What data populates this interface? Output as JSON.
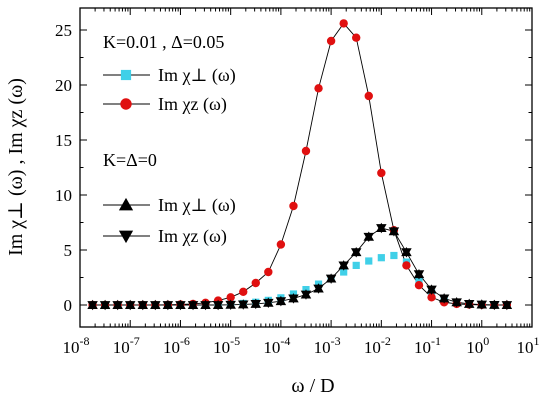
{
  "chart_data": {
    "type": "line",
    "xlabel": "ω / D",
    "ylabel": "Im χ⊥ (ω) , Im χz (ω)",
    "x_scale": "log",
    "xlim": [
      1e-08,
      10
    ],
    "ylim": [
      -2,
      27
    ],
    "x_ticks": [
      1e-08,
      1e-07,
      1e-06,
      1e-05,
      0.0001,
      0.001,
      0.01,
      0.1,
      1,
      10
    ],
    "x_tick_labels": [
      {
        "base": "10",
        "exp": "-8"
      },
      {
        "base": "10",
        "exp": "-7"
      },
      {
        "base": "10",
        "exp": "-6"
      },
      {
        "base": "10",
        "exp": "-5"
      },
      {
        "base": "10",
        "exp": "-4"
      },
      {
        "base": "10",
        "exp": "-3"
      },
      {
        "base": "10",
        "exp": "-2"
      },
      {
        "base": "10",
        "exp": "-1"
      },
      {
        "base": "10",
        "exp": "0"
      },
      {
        "base": "10",
        "exp": "1"
      }
    ],
    "y_ticks": [
      0,
      5,
      10,
      15,
      20,
      25
    ],
    "y_tick_labels": [
      "0",
      "5",
      "10",
      "15",
      "20",
      "25"
    ],
    "legend_groups": [
      {
        "title": "K=0.01 , Δ=0.05",
        "entries": [
          {
            "text": "Im χ⊥ (ω)",
            "series": 0
          },
          {
            "text": "Im χz (ω)",
            "series": 1
          }
        ]
      },
      {
        "title": "K=Δ=0",
        "entries": [
          {
            "text": "Im χ⊥ (ω)",
            "series": 2
          },
          {
            "text": "Im χz (ω)",
            "series": 3
          }
        ]
      }
    ],
    "x": [
      1.78e-08,
      3.16e-08,
      5.62e-08,
      1e-07,
      1.78e-07,
      3.16e-07,
      5.62e-07,
      1e-06,
      1.78e-06,
      3.16e-06,
      5.62e-06,
      1e-05,
      1.78e-05,
      3.16e-05,
      5.62e-05,
      0.0001,
      0.000178,
      0.000316,
      0.000562,
      0.001,
      0.00178,
      0.00316,
      0.00562,
      0.01,
      0.0178,
      0.0316,
      0.0562,
      0.1,
      0.178,
      0.316,
      0.562,
      1,
      1.78,
      3.16
    ],
    "series": [
      {
        "marker": "square",
        "color": "#40d0e8",
        "values": [
          0,
          0,
          0,
          0,
          0,
          0,
          0,
          0,
          0,
          0.02,
          0.04,
          0.08,
          0.14,
          0.25,
          0.42,
          0.65,
          1.0,
          1.4,
          1.9,
          2.4,
          3.0,
          3.6,
          4.0,
          4.3,
          4.5,
          3.9,
          2.2,
          1.1,
          0.5,
          0.2,
          0.08,
          0.03,
          0.01,
          0
        ],
        "draw_line": false
      },
      {
        "marker": "circle",
        "color": "#e01010",
        "values": [
          0,
          0,
          0,
          0,
          0,
          0,
          0.02,
          0.05,
          0.1,
          0.2,
          0.4,
          0.7,
          1.2,
          2.0,
          3.0,
          5.5,
          9.0,
          14.0,
          19.7,
          24.0,
          25.6,
          24.3,
          19.0,
          12.0,
          6.8,
          3.6,
          1.8,
          0.7,
          0.25,
          0.1,
          0.04,
          0.01,
          0,
          0
        ],
        "draw_line": true
      },
      {
        "marker": "triangle-up",
        "color": "#000000",
        "values": [
          0,
          0,
          0,
          0,
          0,
          0,
          0,
          0,
          0,
          0,
          0,
          0.02,
          0.05,
          0.1,
          0.2,
          0.35,
          0.6,
          0.95,
          1.5,
          2.4,
          3.6,
          4.8,
          6.2,
          7.0,
          6.7,
          4.8,
          2.8,
          1.4,
          0.6,
          0.25,
          0.1,
          0.04,
          0.01,
          0
        ],
        "draw_line": true
      },
      {
        "marker": "triangle-down",
        "color": "#000000",
        "values": [
          0,
          0,
          0,
          0,
          0,
          0,
          0,
          0,
          0,
          0,
          0,
          0.02,
          0.05,
          0.1,
          0.2,
          0.35,
          0.6,
          0.95,
          1.5,
          2.4,
          3.6,
          4.8,
          6.2,
          7.0,
          6.7,
          4.8,
          2.8,
          1.4,
          0.6,
          0.25,
          0.1,
          0.04,
          0.01,
          0
        ],
        "draw_line": false
      }
    ]
  }
}
